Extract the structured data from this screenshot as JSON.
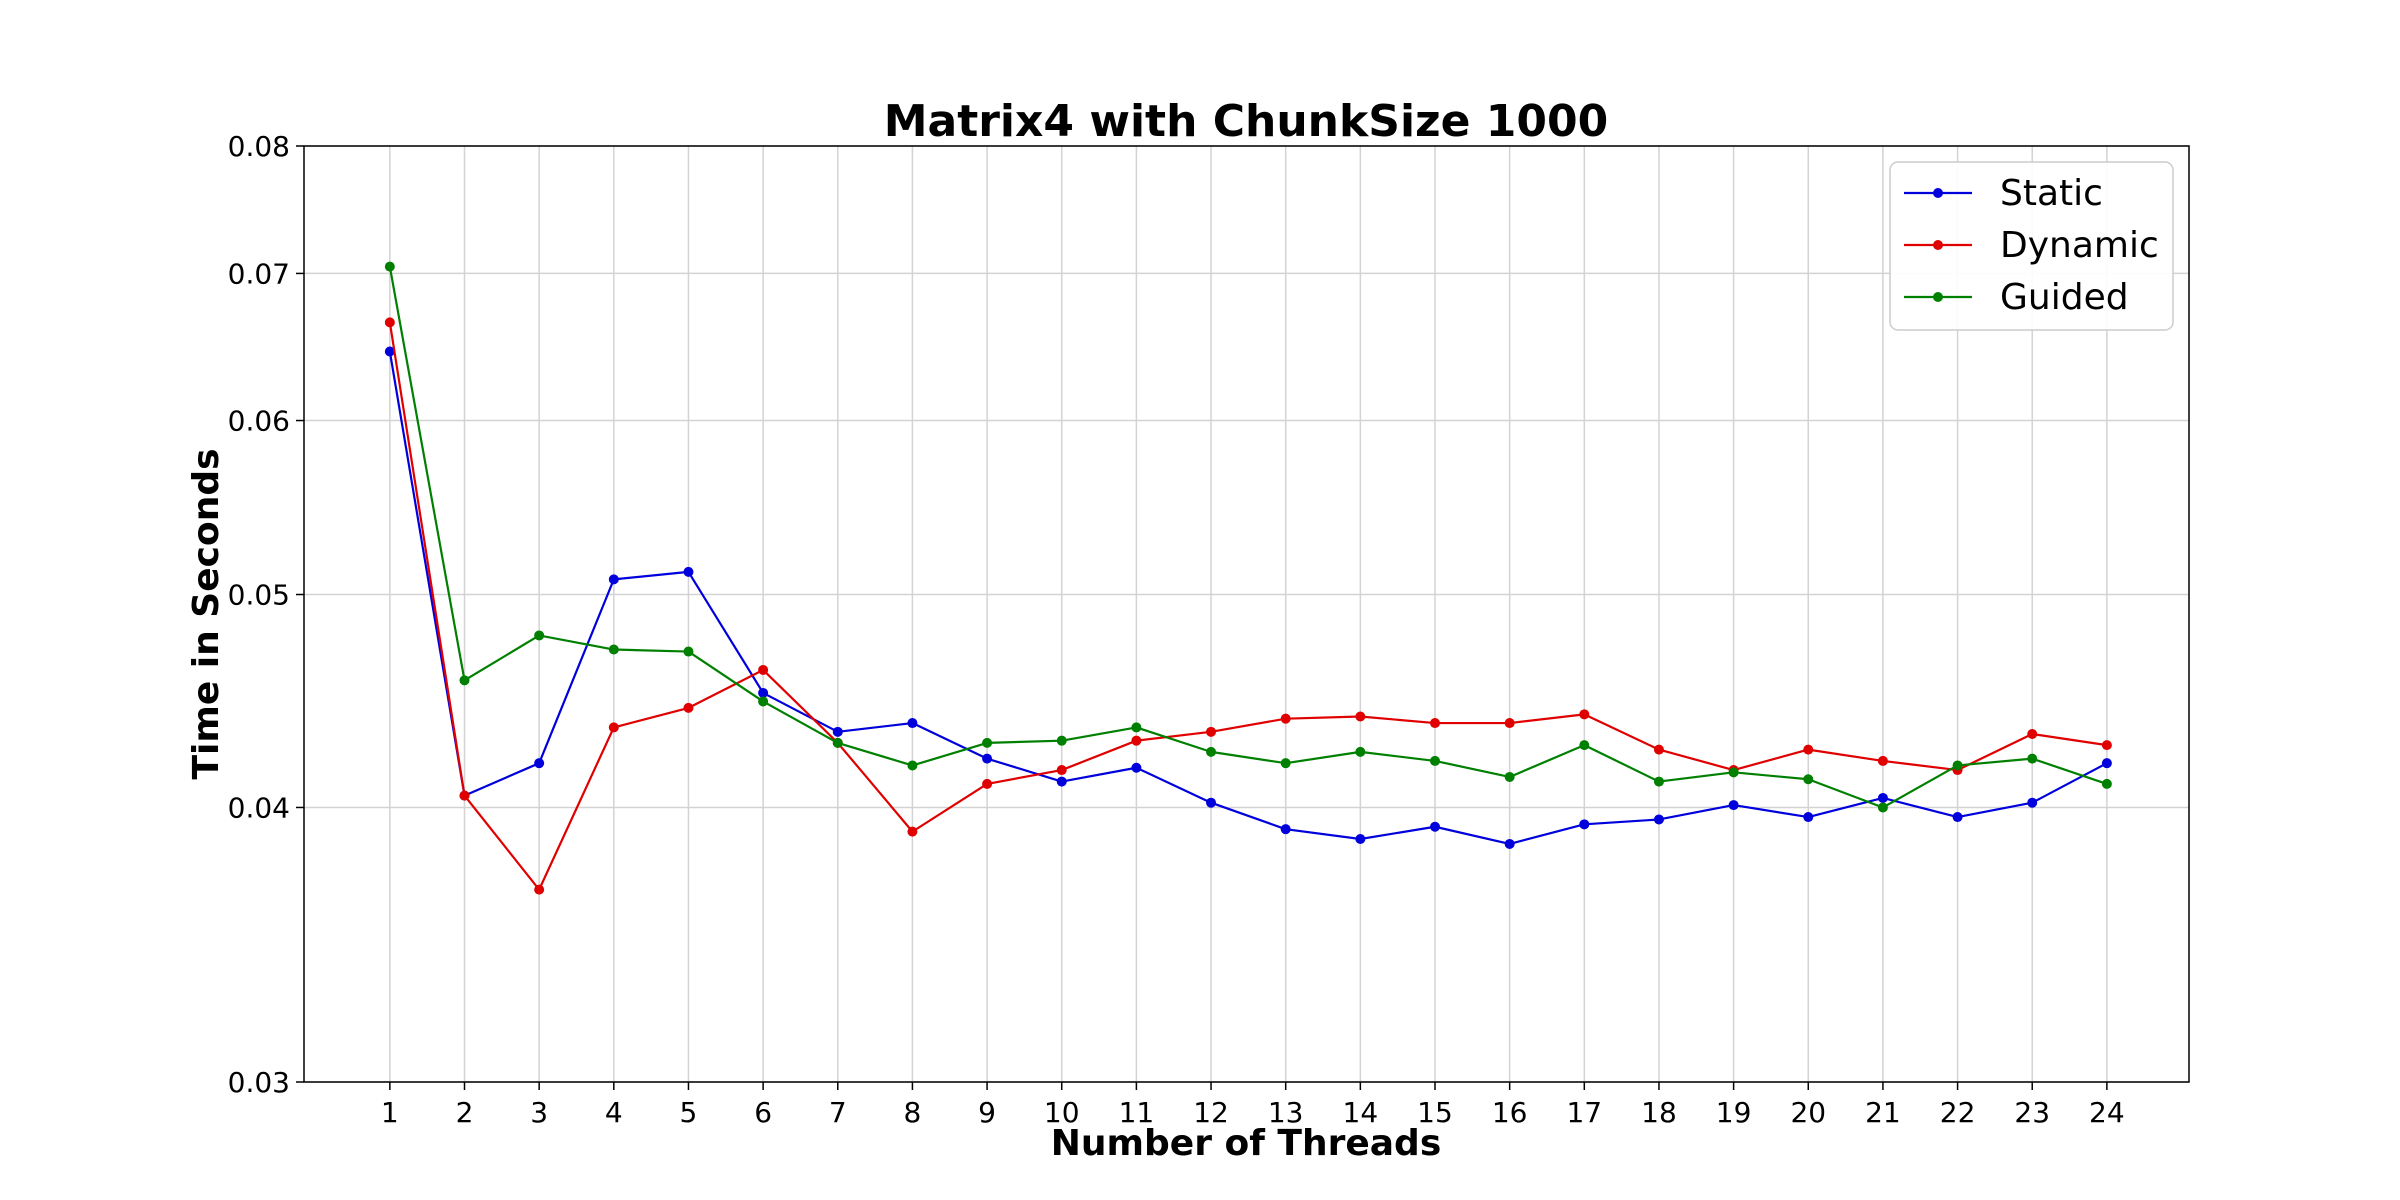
{
  "chart_data": {
    "type": "line",
    "title": "Matrix4 with ChunkSize 1000",
    "xlabel": "Number of Threads",
    "ylabel": "Time in Seconds",
    "y_scale": "log",
    "ylim": [
      0.03,
      0.08
    ],
    "xlim": [
      -0.15,
      25.1
    ],
    "grid": true,
    "legend_position": "top-right",
    "x": [
      1,
      2,
      3,
      4,
      5,
      6,
      7,
      8,
      9,
      10,
      11,
      12,
      13,
      14,
      15,
      16,
      17,
      18,
      19,
      20,
      21,
      22,
      23,
      24
    ],
    "y_ticks": [
      {
        "value": 0.03,
        "label": "0.03"
      },
      {
        "value": 0.04,
        "label": "0.04"
      },
      {
        "value": 0.05,
        "label": "0.05"
      },
      {
        "value": 0.06,
        "label": "0.06"
      },
      {
        "value": 0.07,
        "label": "0.07"
      },
      {
        "value": 0.08,
        "label": "0.08"
      }
    ],
    "series": [
      {
        "name": "Static",
        "color": "#0000dd",
        "values": [
          0.0645,
          0.0405,
          0.0419,
          0.0508,
          0.0512,
          0.0451,
          0.0433,
          0.0437,
          0.0421,
          0.0411,
          0.0417,
          0.0402,
          0.0391,
          0.0387,
          0.0392,
          0.0385,
          0.0393,
          0.0395,
          0.0401,
          0.0396,
          0.0404,
          0.0396,
          0.0402,
          0.0419
        ]
      },
      {
        "name": "Dynamic",
        "color": "#e00000",
        "values": [
          0.0665,
          0.0405,
          0.0367,
          0.0435,
          0.0444,
          0.0462,
          0.0428,
          0.039,
          0.041,
          0.0416,
          0.0429,
          0.0433,
          0.0439,
          0.044,
          0.0437,
          0.0437,
          0.0441,
          0.0425,
          0.0416,
          0.0425,
          0.042,
          0.0416,
          0.0432,
          0.0427
        ]
      },
      {
        "name": "Guided",
        "color": "#008000",
        "values": [
          0.0705,
          0.0457,
          0.0479,
          0.0472,
          0.0471,
          0.0447,
          0.0428,
          0.0418,
          0.0428,
          0.0429,
          0.0435,
          0.0424,
          0.0419,
          0.0424,
          0.042,
          0.0413,
          0.0427,
          0.0411,
          0.0415,
          0.0412,
          0.04,
          0.0418,
          0.0421,
          0.041
        ]
      }
    ]
  }
}
